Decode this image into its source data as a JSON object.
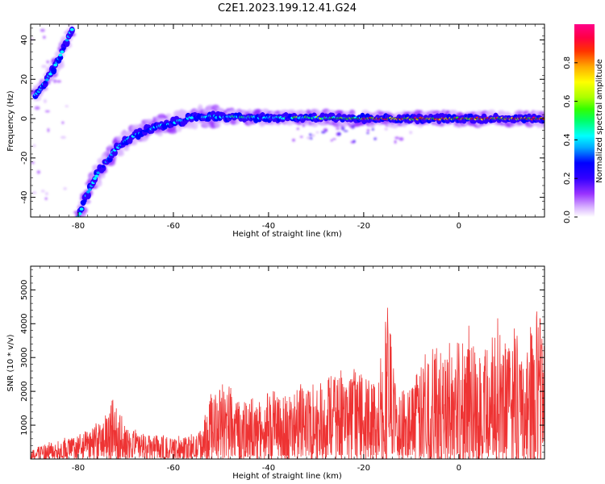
{
  "title": "C2E1.2023.199.12.41.G24",
  "chart_data": [
    {
      "type": "heatmap",
      "xlabel": "Height of straight line (km)",
      "ylabel": "Frequency (Hz)",
      "xlim": [
        -90,
        18
      ],
      "ylim": [
        -50,
        48
      ],
      "xticks": [
        -80,
        -60,
        -40,
        -20,
        0
      ],
      "yticks": [
        -40,
        -20,
        0,
        20,
        40
      ],
      "colorbar": {
        "label": "Normalized spectral amplitude",
        "range": [
          0,
          1
        ],
        "ticks": [
          0.0,
          0.2,
          0.4,
          0.6,
          0.8
        ],
        "colors": [
          "#ffffff",
          "#d9b3ff",
          "#9933ff",
          "#3300ff",
          "#0000ff",
          "#00aaff",
          "#00ffff",
          "#00ff66",
          "#33ff00",
          "#aaff00",
          "#ffff00",
          "#ffaa00",
          "#ff3300",
          "#ff0044",
          "#ff0088"
        ]
      },
      "features": [
        {
          "name": "upper-branch",
          "points": [
            [
              -89,
              12
            ],
            [
              -87,
              18
            ],
            [
              -85,
              26
            ],
            [
              -83,
              36
            ],
            [
              -81,
              47
            ]
          ]
        },
        {
          "name": "lower-branch",
          "points": [
            [
              -80,
              -50
            ],
            [
              -78,
              -38
            ],
            [
              -76,
              -28
            ],
            [
              -73,
              -18
            ],
            [
              -70,
              -11
            ],
            [
              -67,
              -7
            ],
            [
              -62,
              -3
            ],
            [
              -55,
              1
            ],
            [
              -50,
              1
            ]
          ]
        },
        {
          "name": "main-band",
          "points": [
            [
              -50,
              1
            ],
            [
              -40,
              0.5
            ],
            [
              -30,
              0.5
            ],
            [
              -20,
              0
            ],
            [
              -10,
              0
            ],
            [
              0,
              0
            ],
            [
              10,
              0
            ],
            [
              18,
              0
            ]
          ]
        }
      ]
    },
    {
      "type": "line",
      "xlabel": "Height of straight line (km)",
      "ylabel": "SNR (10 * v/v)",
      "xlim": [
        -90,
        18
      ],
      "ylim": [
        0,
        5700
      ],
      "xticks": [
        -80,
        -60,
        -40,
        -20,
        0
      ],
      "yticks": [
        1000,
        2000,
        3000,
        4000,
        5000
      ],
      "color": "#ee3333",
      "envelope": {
        "x": [
          -90,
          -85,
          -80,
          -75,
          -73,
          -70,
          -65,
          -60,
          -55,
          -52,
          -50,
          -45,
          -40,
          -35,
          -30,
          -25,
          -20,
          -17,
          -15,
          -14,
          -13,
          -12,
          -10,
          -7,
          -5,
          -3,
          0,
          2,
          5,
          8,
          10,
          12,
          13,
          14,
          15,
          16,
          18
        ],
        "y": [
          300,
          500,
          700,
          1100,
          1800,
          900,
          700,
          600,
          700,
          1800,
          2200,
          1600,
          1800,
          2000,
          2200,
          2500,
          2400,
          2300,
          4500,
          3200,
          1800,
          1800,
          2400,
          2900,
          3300,
          3000,
          3500,
          3800,
          3200,
          4200,
          3300,
          3900,
          3000,
          2400,
          4000,
          4500,
          3900
        ]
      }
    }
  ]
}
